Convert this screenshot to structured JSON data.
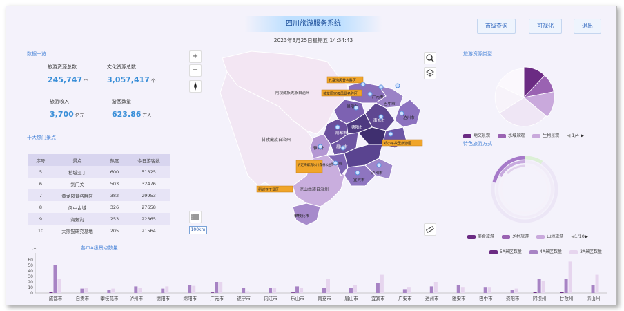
{
  "header": {
    "title": "四川旅游服务系统",
    "datetime": "2023年8月25日星期五 14:34:43",
    "buttons": [
      "市级查询",
      "可视化",
      "退出"
    ]
  },
  "overview": {
    "section_title": "数据一览",
    "stats": [
      {
        "label": "旅游资源总数",
        "value": "245,747",
        "unit": "个"
      },
      {
        "label": "文化资源总数",
        "value": "3,057,417",
        "unit": "个"
      },
      {
        "label": "旅游收入",
        "value": "3,700",
        "unit": "亿元"
      },
      {
        "label": "游客数量",
        "value": "623.86",
        "unit": "万人"
      }
    ]
  },
  "top10": {
    "section_title": "十大热门景点",
    "headers": [
      "序号",
      "景点",
      "热度",
      "今日游客数"
    ],
    "rows": [
      [
        "5",
        "稻城亚丁",
        "600",
        "51325"
      ],
      [
        "6",
        "剑门关",
        "503",
        "32476"
      ],
      [
        "7",
        "黄龙风景名胜区",
        "382",
        "29953"
      ],
      [
        "8",
        "阆中古城",
        "326",
        "27658"
      ],
      [
        "9",
        "海螺沟",
        "253",
        "22365"
      ],
      [
        "10",
        "大熊猫研究基地",
        "205",
        "21564"
      ]
    ]
  },
  "map": {
    "scale": "100km",
    "regions": [
      "阿坝藏族羌族自治州",
      "甘孜藏族自治州",
      "凉山彝族自治州",
      "广元市",
      "绵阳市",
      "巴中市",
      "达州市",
      "南充市",
      "德阳市",
      "成都市",
      "雅安市",
      "眉山市",
      "乐山市",
      "宜宾市",
      "泸州市",
      "攀枝花市"
    ],
    "spots": [
      "九寨沟风景名胜区",
      "黄龙国家级风景名胜区",
      "泸定海螺沟冰川森林公园",
      "稻城亚丁景区",
      "邓小平故里旅游区"
    ],
    "zoom_in": "+",
    "zoom_out": "−"
  },
  "resource_types": {
    "section_title": "旅游资源类型",
    "legend": [
      "地文景观",
      "水域景观",
      "生物景观"
    ],
    "page": "1/4",
    "colors": [
      "#6b2b83",
      "#9a63b2",
      "#c9a9dc"
    ],
    "slices": [
      {
        "value": 12,
        "color": "#6b2b83"
      },
      {
        "value": 10,
        "color": "#9a63b2"
      },
      {
        "value": 14,
        "color": "#c9a9dc"
      },
      {
        "value": 30,
        "color": "#efe6f5"
      },
      {
        "value": 16,
        "color": "#f7f3fa"
      },
      {
        "value": 18,
        "color": "#fbf8fd"
      }
    ]
  },
  "features": {
    "section_title": "特色旅游方式",
    "legend": [
      "美食旅游",
      "乡村旅游",
      "山地旅游"
    ],
    "page": "1/10"
  },
  "chart_data": {
    "type": "bar",
    "title": "各市A级景点数量",
    "ylabel": "个",
    "ylim": [
      0,
      60
    ],
    "yticks": [
      0,
      10,
      20,
      30,
      40,
      50,
      60
    ],
    "categories": [
      "成都市",
      "自贡市",
      "攀枝花市",
      "泸州市",
      "德阳市",
      "绵阳市",
      "广元市",
      "遂宁市",
      "内江市",
      "乐山市",
      "南充市",
      "眉山市",
      "宜宾市",
      "广安市",
      "达州市",
      "雅安市",
      "巴中市",
      "资阳市",
      "阿坝州",
      "甘孜州",
      "凉山州"
    ],
    "series": [
      {
        "name": "5A景区数量",
        "color": "#6b2b83",
        "values": [
          2,
          0,
          0,
          0,
          0,
          0,
          1,
          0,
          0,
          1,
          0,
          0,
          0,
          0,
          0,
          0,
          0,
          0,
          2,
          2,
          0
        ]
      },
      {
        "name": "4A景区数量",
        "color": "#a783c4",
        "values": [
          50,
          8,
          5,
          12,
          8,
          15,
          20,
          10,
          9,
          12,
          10,
          10,
          18,
          7,
          12,
          14,
          11,
          5,
          25,
          25,
          15
        ]
      },
      {
        "name": "3A景区数量",
        "color": "#e6d5ee",
        "values": [
          26,
          9,
          8,
          10,
          12,
          13,
          20,
          3,
          9,
          10,
          25,
          15,
          33,
          11,
          20,
          11,
          11,
          8,
          22,
          57,
          33
        ]
      }
    ]
  }
}
